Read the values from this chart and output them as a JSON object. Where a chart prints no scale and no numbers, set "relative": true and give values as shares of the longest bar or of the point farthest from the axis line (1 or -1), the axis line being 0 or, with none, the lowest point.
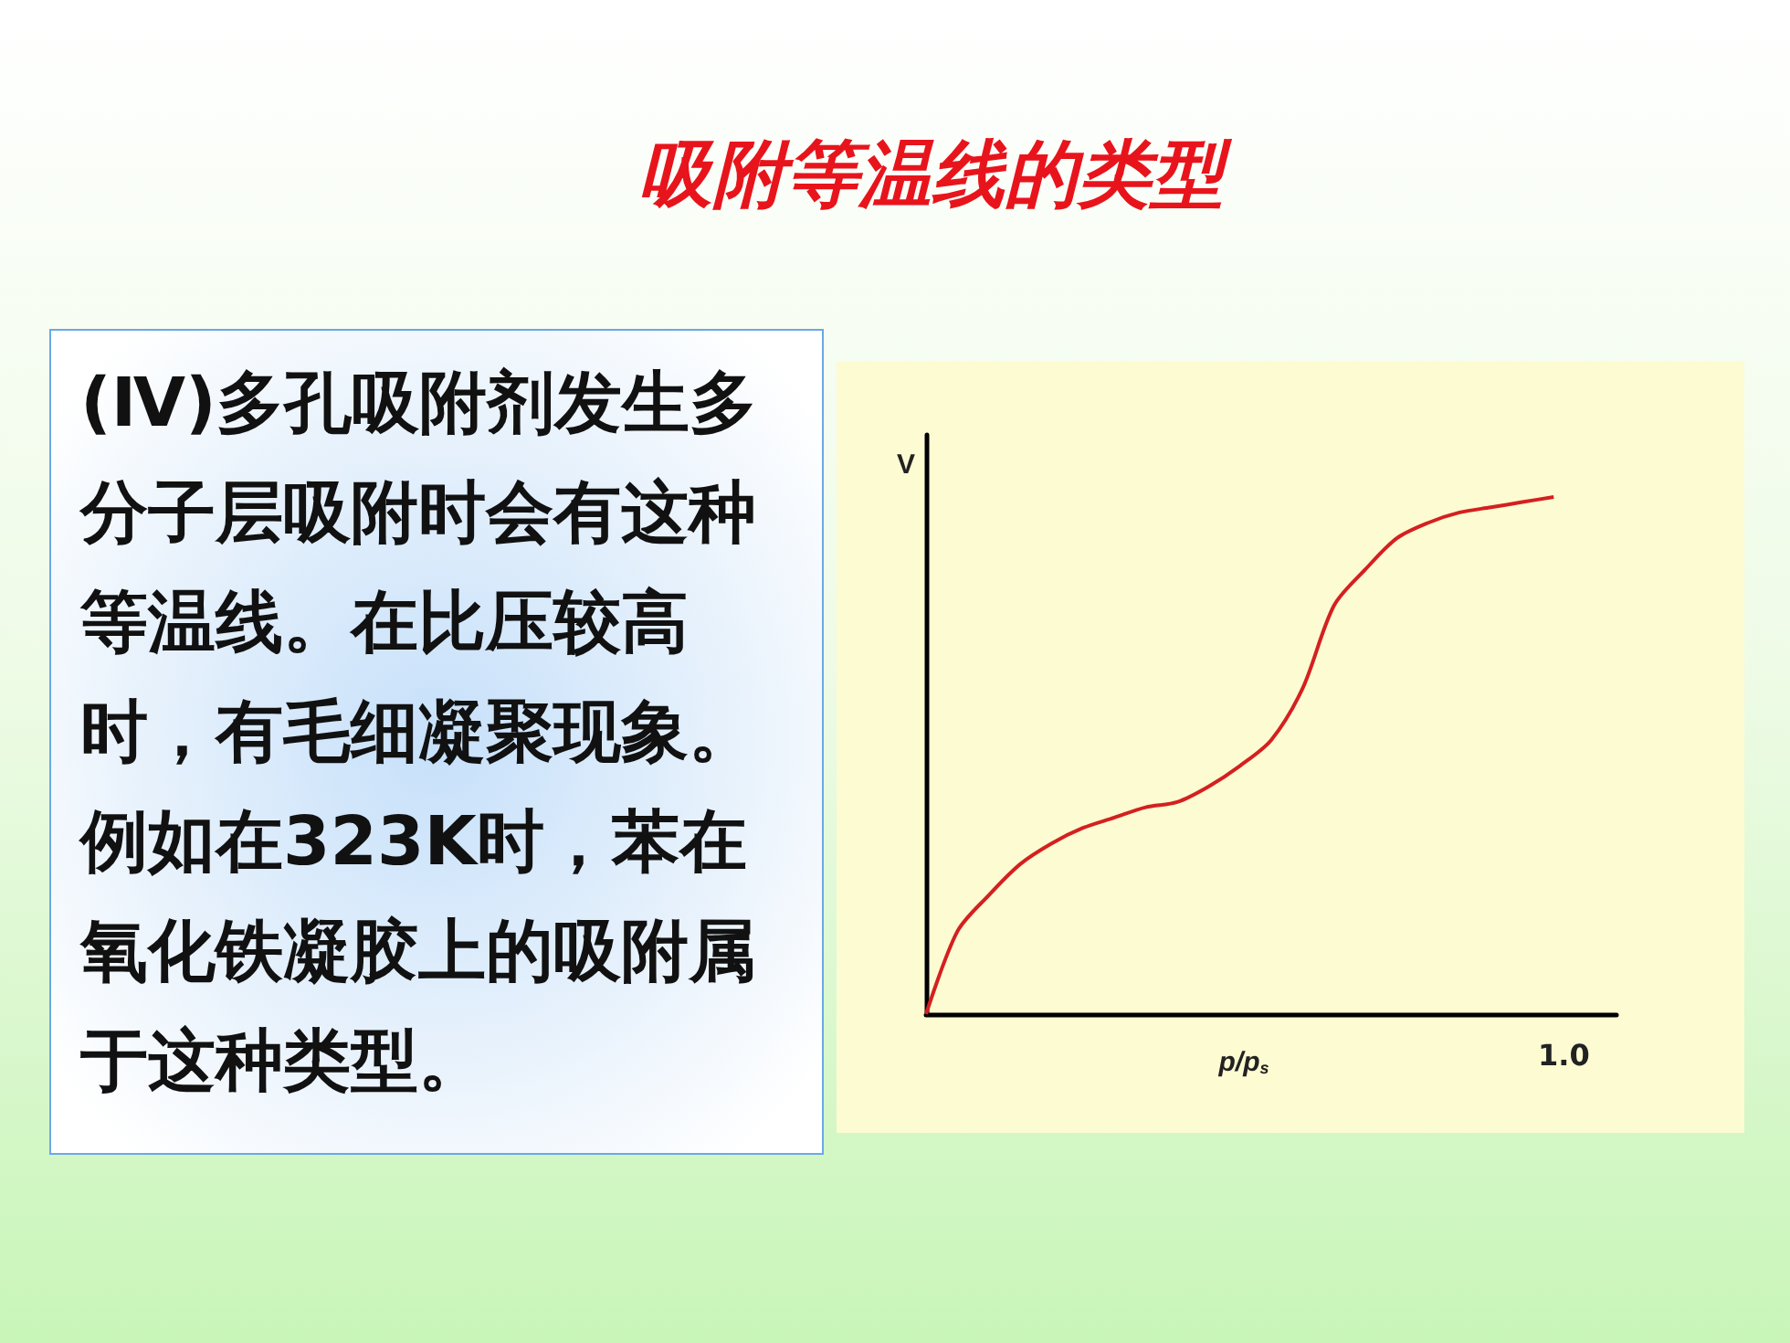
{
  "chart_data": {
    "type": "line",
    "title": "吸附等温线的类型",
    "xlabel": "p/p$_{s}$",
    "ylabel": "V",
    "relative": true,
    "color": "#d42020",
    "marker": "none",
    "line_style": "solid",
    "annotations": [
      "(Ⅳ)多孔吸附剂发生多分子层吸附时会有这种等温线。在比压较高时，有毛细凝聚现象。例如在323K时，苯在氧化铁凝胶上的吸附属于这种类型。",
      "1.0"
    ],
    "categories": [
      null,
      null,
      null,
      null,
      null,
      null,
      null,
      null,
      null,
      null,
      null,
      null,
      null,
      null,
      null,
      null,
      null,
      null,
      null,
      null,
      null,
      null,
      null
    ],
    "values": [
      0,
      0.16,
      0.23,
      0.29,
      0.33,
      0.36,
      0.38,
      0.4,
      0.41,
      0.44,
      0.48,
      0.53,
      0.63,
      0.79,
      0.86,
      0.92,
      0.95,
      0.97,
      0.98,
      0.99,
      1,
      null,
      null
    ]
  }
}
